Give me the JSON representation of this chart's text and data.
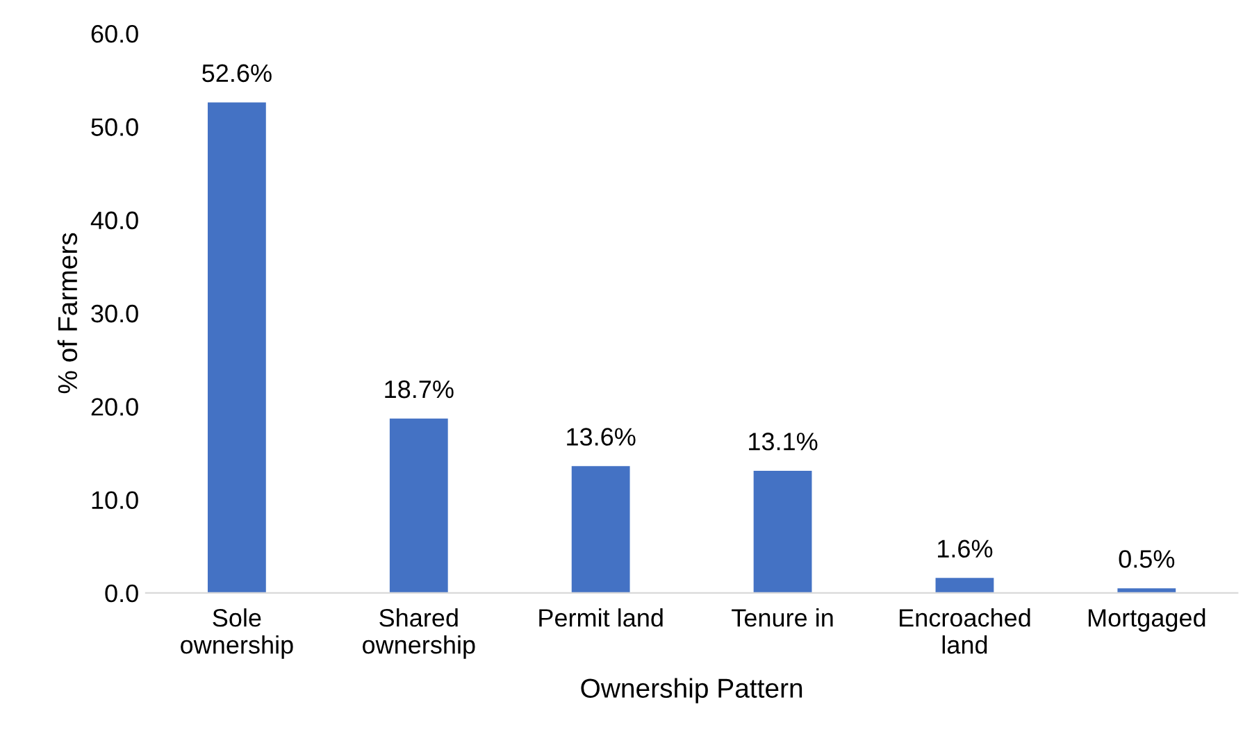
{
  "chart_data": {
    "type": "bar",
    "xlabel": "Ownership Pattern",
    "ylabel": "% of Farmers",
    "categories": [
      "Sole\nownership",
      "Shared\nownership",
      "Permit land",
      "Tenure in",
      "Encroached\nland",
      "Mortgaged"
    ],
    "values": [
      52.6,
      18.7,
      13.6,
      13.1,
      1.6,
      0.5
    ],
    "value_labels": [
      "52.6%",
      "18.7%",
      "13.6%",
      "13.1%",
      "1.6%",
      "0.5%"
    ],
    "color": "#4472c4",
    "ylim": [
      0,
      60
    ],
    "yticks": [
      {
        "value": 0,
        "label": "0.0"
      },
      {
        "value": 10,
        "label": "10.0"
      },
      {
        "value": 20,
        "label": "20.0"
      },
      {
        "value": 30,
        "label": "30.0"
      },
      {
        "value": 40,
        "label": "40.0"
      },
      {
        "value": 50,
        "label": "50.0"
      },
      {
        "value": 60,
        "label": "60.0"
      }
    ],
    "grid": false
  }
}
